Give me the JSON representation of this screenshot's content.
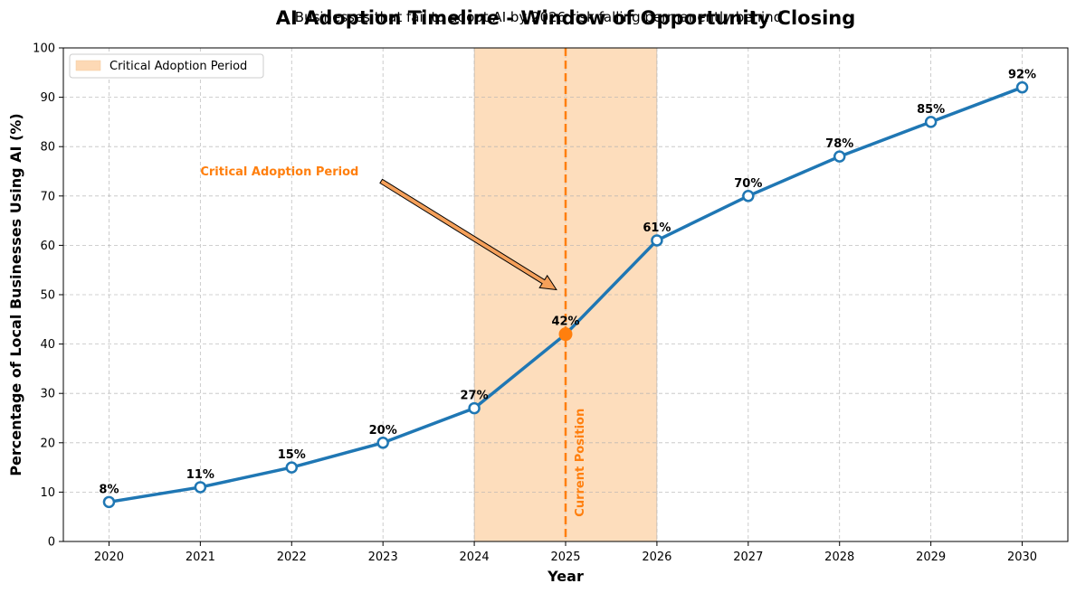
{
  "chart_data": {
    "type": "line",
    "title": "AI Adoption Timeline - Window of Opportunity Closing",
    "subtitle": "Businesses that fail to adopt AI by 2026 risk falling permanently behind",
    "xlabel": "Year",
    "ylabel": "Percentage of Local Businesses Using AI (%)",
    "x": [
      2020,
      2021,
      2022,
      2023,
      2024,
      2025,
      2026,
      2027,
      2028,
      2029,
      2030
    ],
    "series": [
      {
        "values": [
          8,
          11,
          15,
          20,
          27,
          42,
          61,
          70,
          78,
          85,
          92
        ],
        "color": "#1f77b4",
        "labels": [
          "8%",
          "11%",
          "15%",
          "20%",
          "27%",
          "42%",
          "61%",
          "70%",
          "78%",
          "85%",
          "92%"
        ]
      }
    ],
    "xlim": [
      2019.5,
      2030.5
    ],
    "ylim": [
      0,
      100
    ],
    "xticks": [
      "2020",
      "2021",
      "2022",
      "2023",
      "2024",
      "2025",
      "2026",
      "2027",
      "2028",
      "2029",
      "2030"
    ],
    "yticks": [
      "0",
      "10",
      "20",
      "30",
      "40",
      "50",
      "60",
      "70",
      "80",
      "90",
      "100"
    ],
    "grid": true,
    "shaded_region": {
      "x_start": 2024,
      "x_end": 2026,
      "label": "Critical Adoption Period",
      "color": "#fdd9b5"
    },
    "current_marker": {
      "x": 2025,
      "y": 42,
      "label": "Current Position",
      "color": "#ff7f0e"
    },
    "annotation": {
      "text": "Critical Adoption Period",
      "text_x": 2021,
      "text_y": 75,
      "arrow_to_x": 2024.9,
      "arrow_to_y": 51,
      "color": "#ff7f0e"
    },
    "legend": {
      "position": "top-left",
      "entries": [
        "Critical Adoption Period"
      ]
    }
  }
}
